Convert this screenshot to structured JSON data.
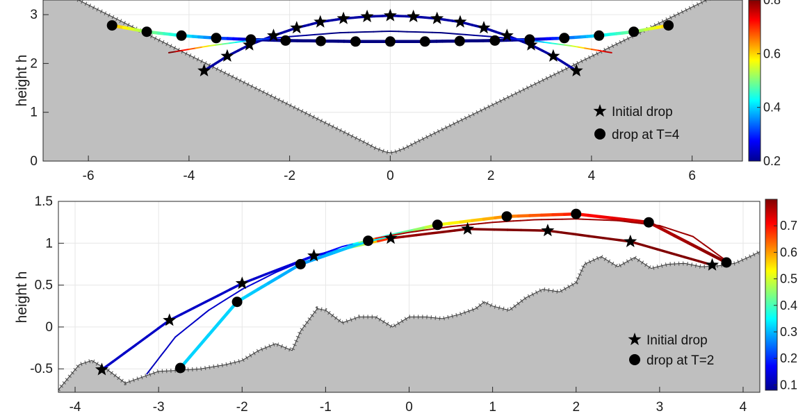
{
  "chart_data": [
    {
      "type": "line",
      "title": "",
      "xlabel": "",
      "ylabel": "height h",
      "xlim": [
        -6.9,
        7.0
      ],
      "ylim": [
        0,
        3.3
      ],
      "xticks": [
        -6,
        -4,
        -2,
        0,
        2,
        4,
        6
      ],
      "xtick_labels": [
        "-6",
        "-4",
        "-2",
        "0",
        "2",
        "4",
        "6"
      ],
      "yticks": [
        0,
        1,
        2,
        3
      ],
      "ytick_labels": [
        "0",
        "1",
        "2",
        "3"
      ],
      "grid": true,
      "legend": {
        "placement": "bottom-right",
        "entries": [
          {
            "marker": "star",
            "label": "Initial drop"
          },
          {
            "marker": "circle",
            "label": "drop at T=4"
          }
        ]
      },
      "colorbar": {
        "min": 0.2,
        "max": 0.8,
        "ticks": [
          "0.2",
          "0.4",
          "0.6",
          "0.8"
        ],
        "colormap": "jet"
      },
      "terrain": {
        "description": "V-shaped valley with rounded bottom",
        "x": [
          -6.9,
          -0.5,
          -0.3,
          -0.1,
          0.0,
          0.1,
          0.3,
          0.5,
          7.0
        ],
        "y": [
          3.66,
          0.38,
          0.27,
          0.19,
          0.17,
          0.19,
          0.27,
          0.38,
          3.66
        ]
      },
      "series": [
        {
          "marker": "star",
          "x": [
            -3.7,
            -3.24,
            -2.8,
            -2.32,
            -1.86,
            -1.39,
            -0.93,
            -0.46,
            0.0,
            0.46,
            0.93,
            1.39,
            1.86,
            2.32,
            2.8,
            3.24,
            3.7
          ],
          "y": [
            1.85,
            2.15,
            2.38,
            2.57,
            2.73,
            2.85,
            2.92,
            2.96,
            2.98,
            2.96,
            2.92,
            2.85,
            2.73,
            2.57,
            2.38,
            2.15,
            1.85
          ],
          "color_value": 0.22
        },
        {
          "marker": "circle",
          "x": [
            -5.53,
            -4.84,
            -4.15,
            -3.46,
            -2.77,
            -2.08,
            -1.38,
            -0.69,
            0.0,
            0.69,
            1.38,
            2.08,
            2.77,
            3.46,
            4.15,
            4.84,
            5.53
          ],
          "y": [
            2.78,
            2.65,
            2.57,
            2.52,
            2.49,
            2.47,
            2.46,
            2.45,
            2.45,
            2.45,
            2.46,
            2.47,
            2.49,
            2.52,
            2.57,
            2.65,
            2.78
          ],
          "color_value": [
            0.62,
            0.5,
            0.42,
            0.33,
            0.22,
            0.2,
            0.2,
            0.2,
            0.2,
            0.2,
            0.2,
            0.2,
            0.22,
            0.33,
            0.42,
            0.5,
            0.62
          ]
        },
        {
          "marker": "none",
          "x": [
            -4.4,
            -3.6,
            -2.8,
            -2.0,
            -1.0,
            0.0,
            1.0,
            2.0,
            2.8,
            3.6,
            4.4
          ],
          "y": [
            2.22,
            2.36,
            2.47,
            2.55,
            2.63,
            2.66,
            2.63,
            2.55,
            2.47,
            2.36,
            2.22
          ],
          "color_value": [
            0.8,
            0.55,
            0.35,
            0.22,
            0.2,
            0.2,
            0.2,
            0.22,
            0.35,
            0.55,
            0.8
          ]
        }
      ]
    },
    {
      "type": "line",
      "title": "",
      "xlabel": "",
      "ylabel": "height h",
      "xlim": [
        -4.2,
        4.2
      ],
      "ylim": [
        -0.78,
        1.5
      ],
      "xticks": [
        -4,
        -3,
        -2,
        -1,
        0,
        1,
        2,
        3,
        4
      ],
      "xtick_labels": [
        "-4",
        "-3",
        "-2",
        "-1",
        "0",
        "1",
        "2",
        "3",
        "4"
      ],
      "yticks": [
        -0.5,
        0,
        0.5,
        1,
        1.5
      ],
      "ytick_labels": [
        "-0.5",
        "0",
        "0.5",
        "1",
        "1.5"
      ],
      "grid": true,
      "legend": {
        "placement": "bottom-right",
        "entries": [
          {
            "marker": "star",
            "label": "Initial drop"
          },
          {
            "marker": "circle",
            "label": "drop at T=2"
          }
        ]
      },
      "colorbar": {
        "min": 0.08,
        "max": 0.8,
        "ticks": [
          "0.1",
          "0.2",
          "0.3",
          "0.4",
          "0.5",
          "0.6",
          "0.7"
        ],
        "colormap": "jet"
      },
      "terrain": {
        "description": "bumpy rising terrain",
        "x": [
          -4.2,
          -3.95,
          -3.8,
          -3.6,
          -3.4,
          -3.2,
          -3.0,
          -2.8,
          -2.5,
          -2.2,
          -2.0,
          -1.8,
          -1.6,
          -1.4,
          -1.3,
          -1.1,
          -1.0,
          -0.8,
          -0.6,
          -0.4,
          -0.2,
          0.0,
          0.2,
          0.4,
          0.6,
          0.8,
          0.9,
          1.0,
          1.2,
          1.4,
          1.6,
          1.8,
          2.0,
          2.1,
          2.3,
          2.5,
          2.7,
          2.9,
          3.1,
          3.3,
          3.5,
          3.7,
          3.9,
          4.1,
          4.2
        ],
        "y": [
          -0.75,
          -0.45,
          -0.4,
          -0.52,
          -0.67,
          -0.6,
          -0.53,
          -0.52,
          -0.5,
          -0.45,
          -0.4,
          -0.28,
          -0.2,
          -0.28,
          -0.05,
          0.22,
          0.2,
          0.05,
          0.12,
          0.12,
          0.0,
          0.12,
          0.12,
          0.1,
          0.15,
          0.22,
          0.3,
          0.25,
          0.2,
          0.35,
          0.45,
          0.42,
          0.53,
          0.75,
          0.84,
          0.72,
          0.83,
          0.7,
          0.75,
          0.76,
          0.72,
          0.73,
          0.76,
          0.85,
          0.9
        ]
      },
      "series": [
        {
          "marker": "star",
          "x": [
            -3.68,
            -2.87,
            -2.0,
            -1.14,
            -0.22,
            0.7,
            1.66,
            2.65,
            3.63
          ],
          "y": [
            -0.51,
            0.08,
            0.52,
            0.85,
            1.06,
            1.17,
            1.15,
            1.02,
            0.74
          ],
          "color_value": [
            0.13,
            0.13,
            0.13,
            0.15,
            0.78,
            0.8,
            0.8,
            0.8,
            0.8
          ]
        },
        {
          "marker": "circle",
          "x": [
            -2.74,
            -2.06,
            -1.3,
            -0.49,
            0.34,
            1.17,
            2.0,
            2.87,
            3.8
          ],
          "y": [
            -0.49,
            0.3,
            0.75,
            1.03,
            1.22,
            1.32,
            1.35,
            1.25,
            0.77
          ],
          "color_value": [
            0.32,
            0.32,
            0.28,
            0.33,
            0.52,
            0.62,
            0.7,
            0.76,
            0.8
          ]
        },
        {
          "marker": "none",
          "x": [
            -3.14,
            -2.8,
            -2.4,
            -2.0,
            -1.6,
            -1.2,
            -0.8,
            -0.4,
            0.0,
            0.5,
            1.0,
            1.5,
            2.0,
            2.5,
            3.0,
            3.4,
            3.8
          ],
          "y": [
            -0.56,
            -0.12,
            0.2,
            0.45,
            0.65,
            0.82,
            0.96,
            1.06,
            1.13,
            1.2,
            1.25,
            1.28,
            1.29,
            1.27,
            1.21,
            1.08,
            0.79
          ],
          "color_value": [
            0.12,
            0.13,
            0.13,
            0.14,
            0.14,
            0.15,
            0.18,
            0.7,
            0.78,
            0.78,
            0.78,
            0.78,
            0.78,
            0.78,
            0.78,
            0.78,
            0.78
          ]
        }
      ]
    }
  ]
}
